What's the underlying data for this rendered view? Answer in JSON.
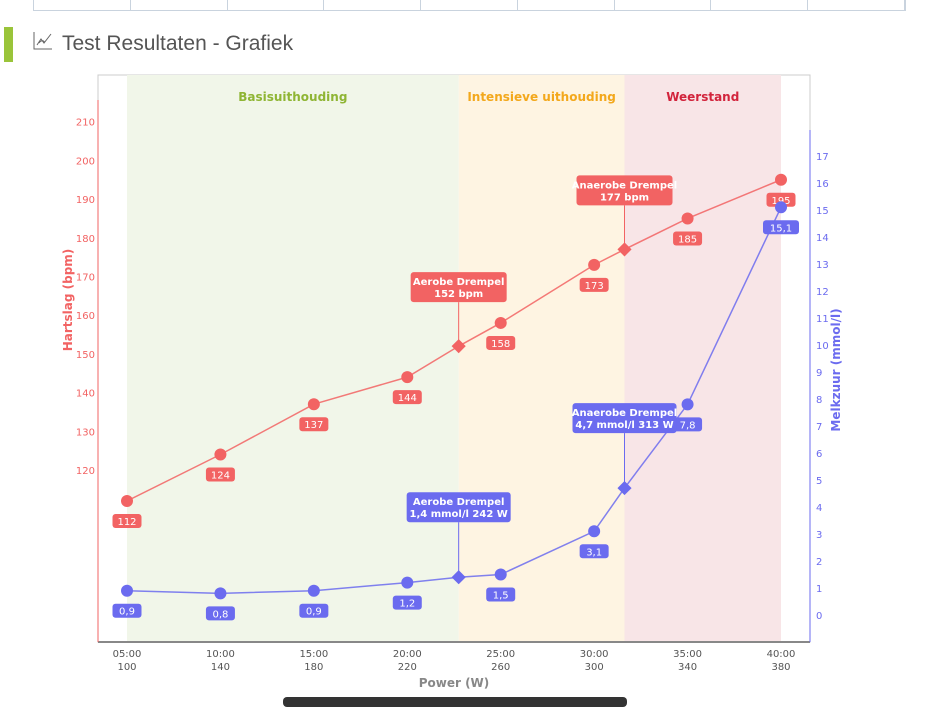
{
  "header": {
    "title": "Test Resultaten - Grafiek",
    "icon": "chart-icon"
  },
  "colors": {
    "hr": "#f26363",
    "lactate": "#6b6bef",
    "accent": "#9ac43a"
  },
  "chart_data": {
    "type": "line",
    "xlabel": "Power (W)",
    "x": [
      100,
      140,
      180,
      220,
      260,
      300,
      340,
      380
    ],
    "x_time_labels": [
      "05:00",
      "10:00",
      "15:00",
      "20:00",
      "25:00",
      "30:00",
      "35:00",
      "40:00"
    ],
    "xlim": [
      88,
      392
    ],
    "y_left": {
      "label": "Hartslag (bpm)",
      "ticks": [
        120,
        130,
        140,
        150,
        160,
        170,
        180,
        190,
        200,
        210
      ],
      "range": [
        104,
        213
      ]
    },
    "y_right": {
      "label": "Melkzuur (mmol/l)",
      "ticks": [
        0,
        1,
        2,
        3,
        4,
        5,
        6,
        7,
        8,
        9,
        10,
        11,
        12,
        13,
        14,
        15,
        16,
        17
      ],
      "range": [
        -1,
        17.8
      ]
    },
    "zones": [
      {
        "name": "Basisuithouding",
        "from": 100,
        "to": 242,
        "color": "#f1f6e9",
        "text_color": "#8fb534"
      },
      {
        "name": "Intensieve uithouding",
        "from": 242,
        "to": 313,
        "color": "#fef4e2",
        "text_color": "#f3a81c"
      },
      {
        "name": "Weerstand",
        "from": 313,
        "to": 380,
        "color": "#f8e5e7",
        "text_color": "#d2243c"
      }
    ],
    "series": [
      {
        "name": "Hartslag",
        "axis": "left",
        "values": [
          112,
          124,
          137,
          144,
          158,
          173,
          185,
          195
        ],
        "labels": [
          "112",
          "124",
          "137",
          "144",
          "158",
          "173",
          "185",
          "195"
        ]
      },
      {
        "name": "Melkzuur",
        "axis": "right",
        "values": [
          0.9,
          0.8,
          0.9,
          1.2,
          1.5,
          3.1,
          7.8,
          15.1
        ],
        "labels": [
          "0,9",
          "0,8",
          "0,9",
          "1,2",
          "1,5",
          "3,1",
          "7,8",
          "15,1"
        ]
      }
    ],
    "annotations": [
      {
        "series": "Hartslag",
        "x": 242,
        "y": 152,
        "title": "Aerobe Drempel",
        "text": "152 bpm"
      },
      {
        "series": "Hartslag",
        "x": 313,
        "y": 177,
        "title": "Anaerobe Drempel",
        "text": "177 bpm"
      },
      {
        "series": "Melkzuur",
        "x": 242,
        "y": 1.4,
        "title": "Aerobe Drempel",
        "text": "1,4 mmol/l 242 W"
      },
      {
        "series": "Melkzuur",
        "x": 313,
        "y": 4.7,
        "title": "Anaerobe Drempel",
        "text": "4,7 mmol/l 313 W"
      }
    ]
  }
}
